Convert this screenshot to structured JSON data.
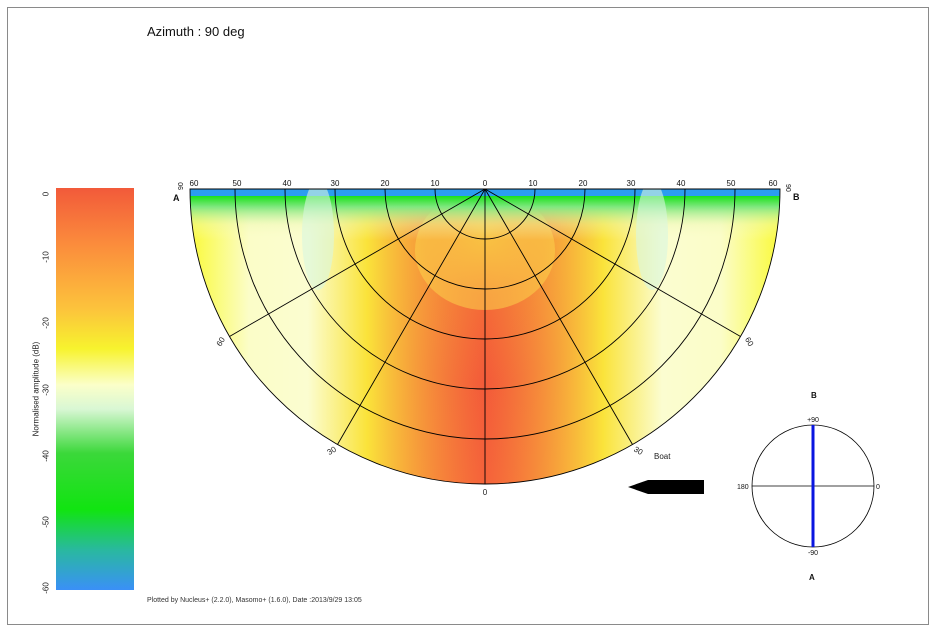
{
  "title": "Azimuth : 90 deg",
  "footer": "Plotted by Nucleus+ (2.2.0), Masomo+ (1.6.0), Date :2013/9/29 13:05",
  "colorbar": {
    "label": "Normalised amplitude (dB)",
    "ticks": [
      "0",
      "-10",
      "-20",
      "-30",
      "-40",
      "-50",
      "-60"
    ],
    "range": [
      -60,
      0
    ],
    "colors": [
      "#f25a3a",
      "#fb8c3c",
      "#fcc33c",
      "#f7f32e",
      "#fbffc9",
      "#d9f7d4",
      "#3bd83a",
      "#11e411",
      "#29b99f",
      "#3a90f7"
    ]
  },
  "plot": {
    "end_label_left": "A",
    "end_label_right": "B",
    "top_ticks": [
      "60",
      "50",
      "40",
      "30",
      "20",
      "10",
      "0",
      "10",
      "20",
      "30",
      "40",
      "50",
      "60"
    ],
    "corner_label_left": "90",
    "corner_label_right": "90",
    "angle_labels": [
      "60",
      "30",
      "0",
      "30",
      "60"
    ],
    "boat_label": "Boat"
  },
  "compass": {
    "top_label": "B",
    "bottom_label": "A",
    "plus90": "+90",
    "minus90": "-90",
    "left": "180",
    "right": "0",
    "line_color": "#0a16e0"
  },
  "chart_data": {
    "type": "heatmap",
    "title": "Azimuth : 90 deg",
    "colorbar_label": "Normalised amplitude (dB)",
    "value_range": [
      -60,
      0
    ],
    "angular_range": [
      -90,
      90
    ],
    "angle_labels": [
      60,
      30,
      0,
      -30,
      -60
    ],
    "top_scale": [
      60,
      50,
      40,
      30,
      20,
      10,
      0,
      10,
      20,
      30,
      40,
      50,
      60
    ],
    "azimuth_deg": 90
  }
}
